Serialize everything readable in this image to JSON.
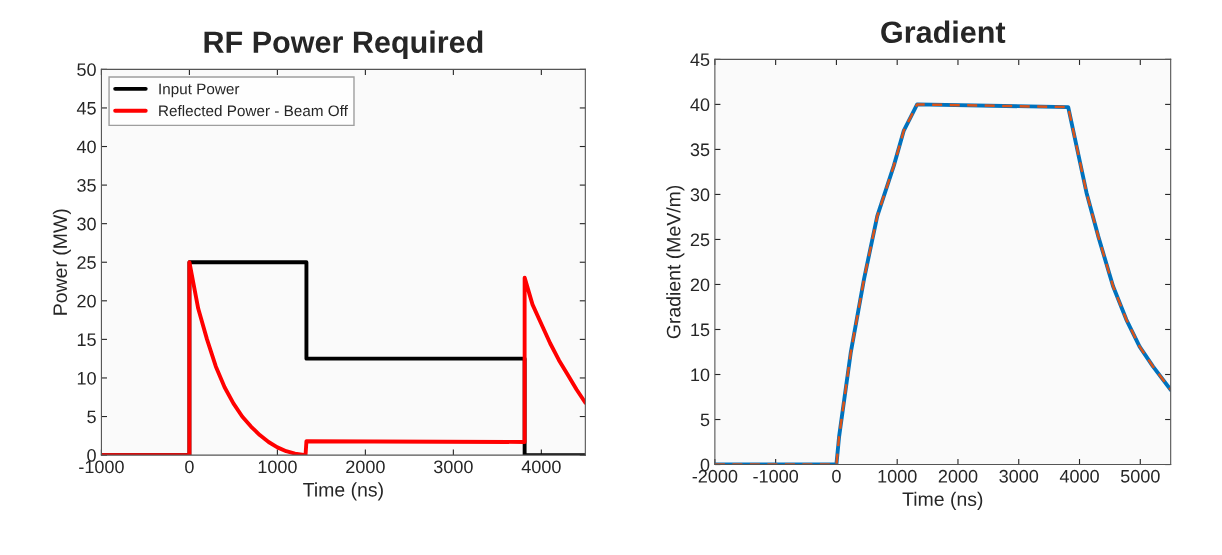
{
  "chart_data": [
    {
      "type": "line",
      "title": "RF Power Required",
      "xlabel": "Time (ns)",
      "ylabel": "Power (MW)",
      "xlim": [
        -1000,
        4500
      ],
      "ylim": [
        0,
        50
      ],
      "xticks": [
        -1000,
        0,
        1000,
        2000,
        3000,
        4000
      ],
      "yticks": [
        0,
        5,
        10,
        15,
        20,
        25,
        30,
        35,
        40,
        45,
        50
      ],
      "grid": false,
      "legend": "top left",
      "series": [
        {
          "name": "Input Power",
          "color": "#000000",
          "line_style": "solid",
          "x": [
            -1000,
            0,
            0,
            1330,
            1330,
            3810,
            3810,
            4500
          ],
          "values": [
            0,
            0,
            25,
            25,
            12.5,
            12.5,
            0,
            0
          ]
        },
        {
          "name": "Reflected Power - Beam Off",
          "color": "#ff0000",
          "line_style": "solid",
          "x": [
            -1000,
            0,
            0,
            100,
            200,
            300,
            400,
            500,
            600,
            700,
            800,
            900,
            1000,
            1100,
            1200,
            1320,
            1330,
            3810,
            3810,
            3900,
            4000,
            4100,
            4200,
            4300,
            4400,
            4500
          ],
          "values": [
            0,
            0,
            25,
            19,
            15,
            11.5,
            8.8,
            6.7,
            5,
            3.7,
            2.6,
            1.7,
            1,
            0.5,
            0.2,
            0,
            1.8,
            1.7,
            23,
            19.5,
            17,
            14.5,
            12.3,
            10.4,
            8.5,
            6.8
          ]
        }
      ]
    },
    {
      "type": "line",
      "title": "Gradient",
      "xlabel": "Time (ns)",
      "ylabel": "Gradient (MeV/m)",
      "xlim": [
        -2000,
        5500
      ],
      "ylim": [
        0,
        45
      ],
      "xticks": [
        -2000,
        -1000,
        0,
        1000,
        2000,
        3000,
        4000,
        5000
      ],
      "yticks": [
        0,
        5,
        10,
        15,
        20,
        25,
        30,
        35,
        40,
        45
      ],
      "grid": false,
      "legend": false,
      "series": [
        {
          "color": "#0072bd",
          "line_style": "solid",
          "x": [
            -2000,
            0,
            44,
            235,
            454,
            672,
            945,
            1109,
            1328,
            3814,
            4115,
            4306,
            4552,
            4770,
            4989,
            5208,
            5500
          ],
          "values": [
            0,
            0,
            3.1,
            12.4,
            20.6,
            27.6,
            33.2,
            37.1,
            40,
            39.7,
            30.2,
            25.4,
            19.8,
            16.1,
            13.1,
            10.9,
            8.3
          ]
        },
        {
          "color": "#d95319",
          "line_style": "dashed",
          "x": [
            -2000,
            0,
            44,
            235,
            454,
            672,
            945,
            1109,
            1328,
            3814,
            4115,
            4306,
            4552,
            4770,
            4989,
            5208,
            5500
          ],
          "values": [
            0,
            0,
            3.1,
            12.4,
            20.6,
            27.6,
            33.2,
            37.1,
            40,
            39.7,
            30.2,
            25.4,
            19.8,
            16.1,
            13.1,
            10.9,
            8.3
          ]
        }
      ]
    }
  ]
}
